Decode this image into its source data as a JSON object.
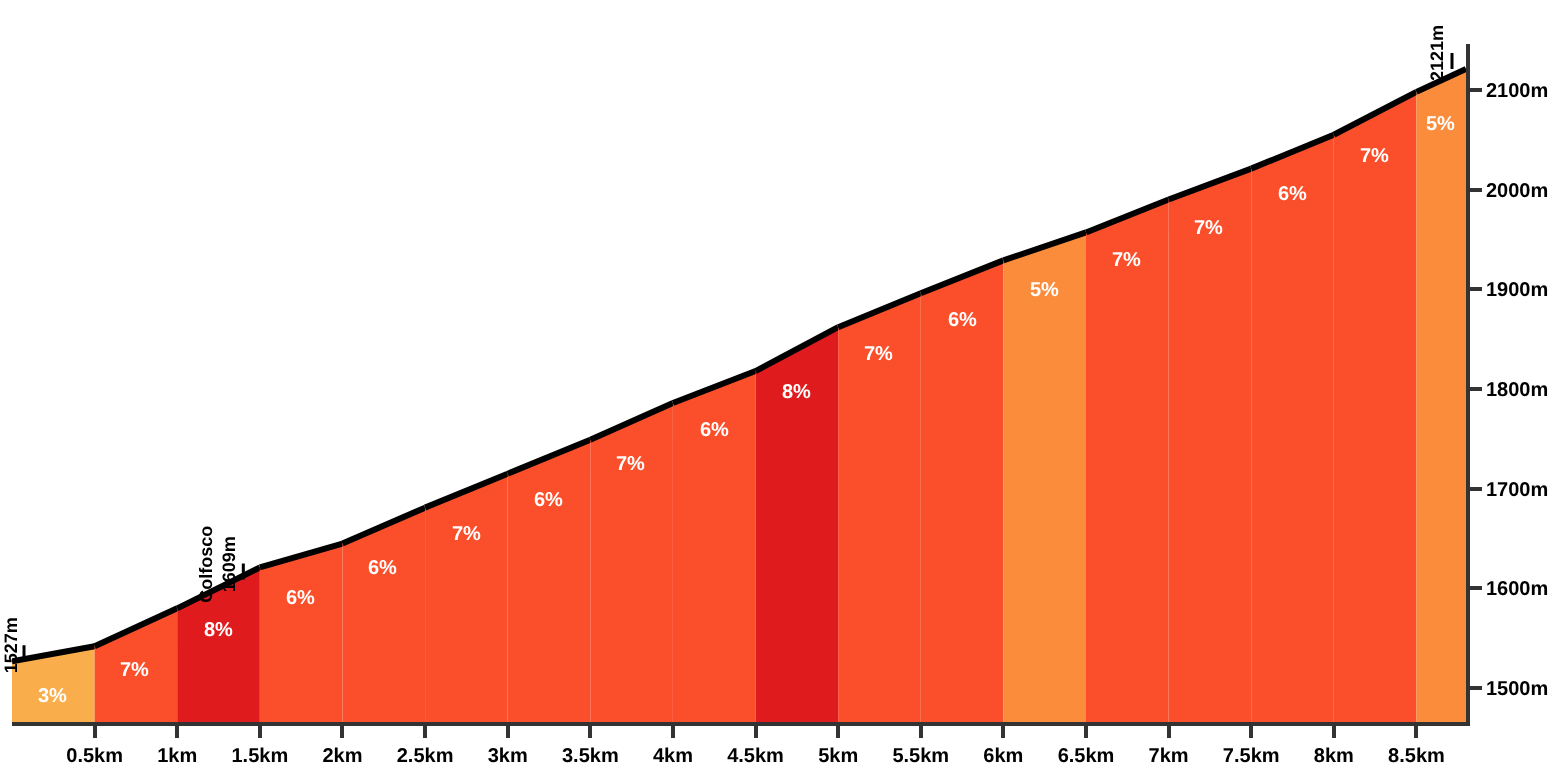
{
  "chart_data": {
    "type": "area",
    "series": [
      {
        "color": "#f9ad4b",
        "x": [
          0,
          0.5
        ],
        "values": [
          1527,
          1542
        ]
      },
      {
        "color": "#fb4f2b",
        "x": [
          0.5,
          1.0
        ],
        "values": [
          1542,
          1580
        ]
      },
      {
        "color": "#e01b1e",
        "x": [
          1.0,
          1.5
        ],
        "values": [
          1580,
          1621
        ]
      },
      {
        "color": "#fb4f2b",
        "x": [
          1.5,
          2.0
        ],
        "values": [
          1621,
          1645
        ]
      },
      {
        "color": "#fb4f2b",
        "x": [
          2.0,
          2.5
        ],
        "values": [
          1645,
          1681
        ]
      },
      {
        "color": "#fb4f2b",
        "x": [
          2.5,
          3.0
        ],
        "values": [
          1681,
          1715
        ]
      },
      {
        "color": "#fb4f2b",
        "x": [
          3.0,
          3.5
        ],
        "values": [
          1715,
          1749
        ]
      },
      {
        "color": "#fb4f2b",
        "x": [
          3.5,
          4.0
        ],
        "values": [
          1749,
          1786
        ]
      },
      {
        "color": "#fb4f2b",
        "x": [
          4.0,
          4.5
        ],
        "values": [
          1786,
          1818
        ]
      },
      {
        "color": "#e01b1e",
        "x": [
          4.5,
          5.0
        ],
        "values": [
          1818,
          1862
        ]
      },
      {
        "color": "#fb4f2b",
        "x": [
          5.0,
          5.5
        ],
        "values": [
          1862,
          1896
        ]
      },
      {
        "color": "#fb4f2b",
        "x": [
          5.5,
          6.0
        ],
        "values": [
          1896,
          1929
        ]
      },
      {
        "color": "#fb8c3c",
        "x": [
          6.0,
          6.5
        ],
        "values": [
          1929,
          1957
        ]
      },
      {
        "color": "#fb4f2b",
        "x": [
          6.5,
          7.0
        ],
        "values": [
          1957,
          1990
        ]
      },
      {
        "color": "#fb4f2b",
        "x": [
          7.0,
          7.5
        ],
        "values": [
          1990,
          2021
        ]
      },
      {
        "color": "#fb4f2b",
        "x": [
          7.5,
          8.0
        ],
        "values": [
          2021,
          2055
        ]
      },
      {
        "color": "#fb4f2b",
        "x": [
          8.0,
          8.5
        ],
        "values": [
          2055,
          2098
        ]
      },
      {
        "color": "#fb8c3c",
        "x": [
          8.5,
          8.8
        ],
        "values": [
          2098,
          2121
        ]
      }
    ],
    "annotations": [
      "3%",
      "7%",
      "8%",
      "6%",
      "6%",
      "7%",
      "6%",
      "7%",
      "6%",
      "8%",
      "7%",
      "6%",
      "5%",
      "7%",
      "7%",
      "6%",
      "7%",
      "5%",
      {
        "text": "1527m",
        "x": 0,
        "y": 1527
      },
      {
        "text": "Colfosco\n1609m",
        "x": 1.4,
        "y": 1609
      },
      {
        "text": "2121m",
        "x": 8.8,
        "y": 2121
      }
    ],
    "xlim": [
      0,
      8.8
    ],
    "xticks": [
      {
        "value": 0.5,
        "label": "0.5km"
      },
      {
        "value": 1,
        "label": "1km"
      },
      {
        "value": 1.5,
        "label": "1.5km"
      },
      {
        "value": 2,
        "label": "2km"
      },
      {
        "value": 2.5,
        "label": "2.5km"
      },
      {
        "value": 3,
        "label": "3km"
      },
      {
        "value": 3.5,
        "label": "3.5km"
      },
      {
        "value": 4,
        "label": "4km"
      },
      {
        "value": 4.5,
        "label": "4.5km"
      },
      {
        "value": 5,
        "label": "5km"
      },
      {
        "value": 5.5,
        "label": "5.5km"
      },
      {
        "value": 6,
        "label": "6km"
      },
      {
        "value": 6.5,
        "label": "6.5km"
      },
      {
        "value": 7,
        "label": "7km"
      },
      {
        "value": 7.5,
        "label": "7.5km"
      },
      {
        "value": 8,
        "label": "8km"
      },
      {
        "value": 8.5,
        "label": "8.5km"
      }
    ],
    "ylim": [
      1466,
      2146
    ],
    "yticks": [
      {
        "value": 1500,
        "label": "1500m"
      },
      {
        "value": 1600,
        "label": "1600m"
      },
      {
        "value": 1700,
        "label": "1700m"
      },
      {
        "value": 1800,
        "label": "1800m"
      },
      {
        "value": 1900,
        "label": "1900m"
      },
      {
        "value": 2000,
        "label": "2000m"
      },
      {
        "value": 2100,
        "label": "2100m"
      }
    ]
  }
}
